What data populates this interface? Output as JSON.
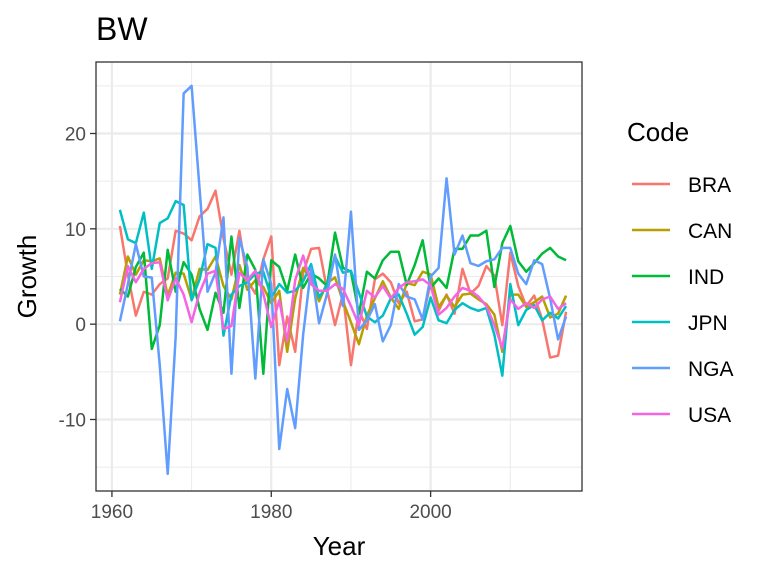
{
  "chart_data": {
    "type": "line",
    "title": "BW",
    "xlabel": "Year",
    "ylabel": "Growth",
    "xlim": [
      1958,
      2019
    ],
    "ylim": [
      -17.5,
      27.5
    ],
    "x_ticks": [
      1960,
      1980,
      2000
    ],
    "y_ticks": [
      -10,
      0,
      10,
      20
    ],
    "grid": true,
    "legend": {
      "title": "Code",
      "position": "right"
    },
    "x": [
      1961,
      1962,
      1963,
      1964,
      1965,
      1966,
      1967,
      1968,
      1969,
      1970,
      1971,
      1972,
      1973,
      1974,
      1975,
      1976,
      1977,
      1978,
      1979,
      1980,
      1981,
      1982,
      1983,
      1984,
      1985,
      1986,
      1987,
      1988,
      1989,
      1990,
      1991,
      1992,
      1993,
      1994,
      1995,
      1996,
      1997,
      1998,
      1999,
      2000,
      2001,
      2002,
      2003,
      2004,
      2005,
      2006,
      2007,
      2008,
      2009,
      2010,
      2011,
      2012,
      2013,
      2014,
      2015,
      2016,
      2017
    ],
    "series": [
      {
        "name": "BRA",
        "color": "#F8766D",
        "values": [
          10.3,
          5.2,
          0.9,
          3.4,
          3.1,
          4.2,
          4.8,
          9.8,
          9.5,
          8.8,
          11.3,
          12.1,
          14.0,
          9.0,
          5.2,
          9.8,
          4.6,
          3.2,
          6.8,
          9.2,
          -4.3,
          0.8,
          -2.9,
          5.4,
          7.9,
          8.0,
          3.6,
          -0.1,
          3.2,
          -4.3,
          1.5,
          -0.5,
          4.7,
          5.3,
          4.4,
          2.2,
          3.4,
          0.3,
          0.5,
          4.4,
          1.4,
          3.1,
          1.1,
          5.8,
          3.2,
          4.0,
          6.1,
          5.1,
          -0.1,
          7.5,
          4.0,
          1.9,
          3.0,
          0.5,
          -3.5,
          -3.3,
          1.3
        ]
      },
      {
        "name": "CAN",
        "color": "#B79F00",
        "values": [
          3.1,
          7.1,
          5.2,
          6.7,
          6.6,
          6.9,
          3.0,
          5.4,
          5.3,
          2.6,
          5.8,
          5.7,
          7.1,
          4.0,
          2.6,
          6.2,
          3.6,
          4.6,
          3.9,
          2.2,
          3.5,
          -2.9,
          2.7,
          5.9,
          4.7,
          2.4,
          4.3,
          4.9,
          2.4,
          0.2,
          -2.1,
          0.9,
          2.7,
          4.5,
          2.8,
          1.6,
          4.3,
          4.1,
          5.5,
          5.2,
          1.8,
          3.0,
          1.8,
          3.1,
          3.2,
          2.6,
          2.1,
          1.0,
          -2.9,
          3.1,
          3.1,
          1.8,
          2.3,
          2.9,
          0.7,
          1.1,
          3.0
        ]
      },
      {
        "name": "IND",
        "color": "#00BA38",
        "values": [
          3.7,
          2.9,
          6.0,
          7.5,
          -2.6,
          -0.1,
          7.8,
          3.4,
          6.5,
          5.2,
          1.6,
          -0.6,
          3.3,
          1.2,
          9.2,
          1.7,
          7.3,
          5.7,
          -5.2,
          6.7,
          6.0,
          3.5,
          7.3,
          3.8,
          5.3,
          4.8,
          4.0,
          9.6,
          5.9,
          5.5,
          1.1,
          5.5,
          4.8,
          6.7,
          7.6,
          7.6,
          4.1,
          6.2,
          8.8,
          3.8,
          4.8,
          3.8,
          7.9,
          7.9,
          9.3,
          9.3,
          9.8,
          3.9,
          8.5,
          10.3,
          6.6,
          5.5,
          6.4,
          7.4,
          8.0,
          7.1,
          6.7
        ]
      },
      {
        "name": "JPN",
        "color": "#00BFC4",
        "values": [
          12.0,
          8.9,
          8.5,
          11.7,
          5.8,
          10.6,
          11.1,
          12.9,
          12.5,
          2.5,
          4.7,
          8.4,
          8.0,
          -1.2,
          3.1,
          4.0,
          4.4,
          5.3,
          5.5,
          2.8,
          4.2,
          3.3,
          3.5,
          4.5,
          6.3,
          2.8,
          4.1,
          7.1,
          5.4,
          5.6,
          3.3,
          0.8,
          0.2,
          0.9,
          2.7,
          3.1,
          1.1,
          -1.1,
          -0.3,
          2.8,
          0.4,
          0.1,
          1.5,
          2.2,
          1.7,
          1.4,
          1.7,
          -1.1,
          -5.4,
          4.2,
          -0.1,
          1.5,
          2.0,
          0.4,
          1.2,
          0.6,
          1.9
        ]
      },
      {
        "name": "NGA",
        "color": "#619CFF",
        "values": [
          0.3,
          4.2,
          8.4,
          5.0,
          4.9,
          -4.3,
          -15.7,
          -1.3,
          24.2,
          25.0,
          14.2,
          3.4,
          5.4,
          11.2,
          -5.2,
          9.0,
          6.0,
          -5.7,
          6.8,
          4.2,
          -13.1,
          -6.8,
          -10.9,
          -1.1,
          5.9,
          0.1,
          3.2,
          7.3,
          1.9,
          11.8,
          -0.6,
          0.4,
          2.1,
          -1.8,
          -0.1,
          4.2,
          2.9,
          2.6,
          0.5,
          5.0,
          5.9,
          15.3,
          7.3,
          9.3,
          6.4,
          6.1,
          6.6,
          6.8,
          8.0,
          8.0,
          5.3,
          4.2,
          6.7,
          6.3,
          2.7,
          -1.6,
          0.8
        ]
      },
      {
        "name": "USA",
        "color": "#F564E3",
        "values": [
          2.3,
          6.1,
          4.4,
          5.8,
          6.4,
          6.5,
          2.5,
          4.8,
          3.1,
          0.2,
          3.3,
          5.3,
          5.6,
          -0.5,
          -0.2,
          5.4,
          4.6,
          5.6,
          3.2,
          -0.3,
          2.5,
          -1.8,
          4.6,
          7.2,
          4.2,
          3.5,
          3.5,
          4.2,
          3.7,
          1.9,
          -0.1,
          3.5,
          2.8,
          4.0,
          2.7,
          3.8,
          4.4,
          4.5,
          4.7,
          4.1,
          1.0,
          1.7,
          2.9,
          3.8,
          3.5,
          2.9,
          1.9,
          -0.1,
          -2.5,
          2.6,
          1.6,
          2.2,
          1.7,
          2.6,
          2.9,
          1.6,
          2.2
        ]
      }
    ]
  }
}
